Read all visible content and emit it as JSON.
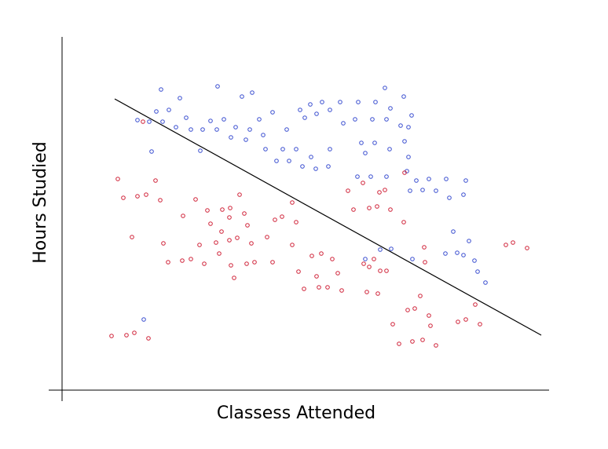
{
  "chart_data": {
    "type": "scatter",
    "xlabel": "Classess Attended",
    "ylabel": "Hours Studied",
    "xlim": [
      0,
      620
    ],
    "ylim": [
      0,
      450
    ],
    "series": [
      {
        "color": "#3b4fd0",
        "x": [
          126,
          150,
          198,
          229,
          242,
          411,
          435,
          120,
          136,
          111,
          128,
          96,
          145,
          158,
          164,
          179,
          189,
          197,
          206,
          215,
          221,
          234,
          239,
          251,
          256,
          268,
          286,
          303,
          316,
          331,
          354,
          377,
          399,
          418,
          341,
          324,
          309,
          358,
          373,
          395,
          413,
          431,
          445,
          441,
          176,
          114,
          259,
          273,
          281,
          289,
          298,
          306,
          317,
          323,
          341,
          339,
          381,
          398,
          417,
          386,
          436,
          441,
          376,
          393,
          413,
          439,
          443,
          451,
          459,
          467,
          476,
          489,
          493,
          511,
          514,
          498,
          488,
          503,
          511,
          518,
          525,
          529,
          539,
          446,
          419,
          386,
          405,
          104
        ],
        "y": [
          383,
          372,
          387,
          374,
          379,
          385,
          374,
          355,
          357,
          342,
          342,
          344,
          335,
          347,
          332,
          332,
          343,
          332,
          345,
          322,
          335,
          319,
          332,
          345,
          325,
          354,
          332,
          357,
          364,
          367,
          367,
          367,
          367,
          359,
          357,
          352,
          347,
          340,
          345,
          345,
          345,
          337,
          350,
          335,
          305,
          304,
          307,
          292,
          307,
          292,
          307,
          285,
          297,
          282,
          307,
          285,
          315,
          315,
          307,
          302,
          317,
          297,
          272,
          272,
          272,
          279,
          254,
          267,
          255,
          269,
          254,
          269,
          245,
          249,
          267,
          202,
          174,
          175,
          172,
          190,
          165,
          151,
          137,
          167,
          180,
          167,
          179,
          90
        ]
      },
      {
        "color": "#d0243a",
        "x": [
          71,
          78,
          96,
          107,
          119,
          125,
          103,
          89,
          129,
          135,
          153,
          164,
          181,
          175,
          154,
          170,
          185,
          189,
          204,
          214,
          213,
          226,
          232,
          236,
          203,
          196,
          213,
          223,
          200,
          215,
          219,
          235,
          245,
          241,
          261,
          268,
          271,
          280,
          293,
          298,
          293,
          301,
          308,
          318,
          330,
          327,
          338,
          344,
          351,
          356,
          324,
          364,
          371,
          383,
          391,
          401,
          404,
          411,
          418,
          435,
          436,
          384,
          391,
          397,
          405,
          413,
          388,
          402,
          461,
          462,
          456,
          440,
          449,
          467,
          469,
          421,
          429,
          446,
          459,
          476,
          504,
          514,
          526,
          532,
          565,
          574,
          592,
          63,
          82,
          92,
          110
        ],
        "y": [
          269,
          245,
          247,
          249,
          267,
          242,
          342,
          195,
          187,
          163,
          165,
          167,
          161,
          185,
          222,
          243,
          229,
          212,
          230,
          232,
          220,
          249,
          225,
          210,
          202,
          188,
          191,
          194,
          174,
          159,
          143,
          161,
          163,
          187,
          195,
          163,
          217,
          221,
          239,
          214,
          185,
          151,
          129,
          171,
          174,
          131,
          131,
          167,
          149,
          127,
          145,
          254,
          230,
          264,
          232,
          234,
          252,
          255,
          230,
          214,
          277,
          161,
          157,
          167,
          152,
          152,
          125,
          123,
          182,
          163,
          120,
          102,
          104,
          95,
          82,
          84,
          59,
          62,
          64,
          57,
          87,
          90,
          109,
          84,
          185,
          188,
          181,
          69,
          70,
          73,
          66
        ]
      }
    ],
    "line": {
      "color": "#000000",
      "x": [
        67,
        610
      ],
      "y": [
        371,
        70
      ]
    }
  }
}
